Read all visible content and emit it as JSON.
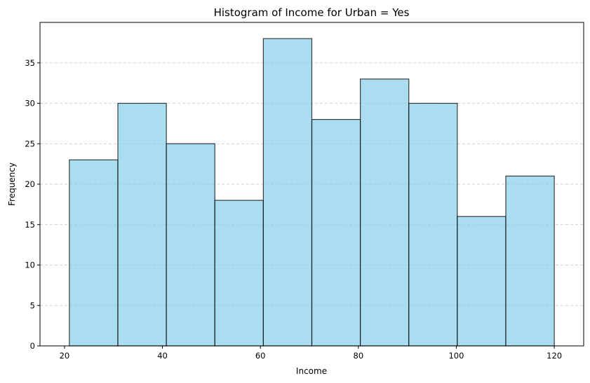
{
  "chart_data": {
    "type": "bar",
    "title": "Histogram of Income for Urban = Yes",
    "xlabel": "Income",
    "ylabel": "Frequency",
    "bin_edges": [
      21.0,
      30.9,
      40.8,
      50.7,
      60.6,
      70.5,
      80.4,
      90.3,
      100.2,
      110.1,
      120.0
    ],
    "values": [
      23,
      30,
      25,
      18,
      38,
      28,
      33,
      30,
      16,
      21
    ],
    "xlim": [
      15,
      126
    ],
    "ylim": [
      0,
      40
    ],
    "xticks": [
      20,
      40,
      60,
      80,
      100,
      120
    ],
    "yticks": [
      0,
      5,
      10,
      15,
      20,
      25,
      30,
      35
    ],
    "grid": "y-dashed",
    "colors": {
      "bar_fill": "#87CEEB",
      "bar_stroke": "#000000",
      "grid": "#b0b0b0"
    }
  }
}
